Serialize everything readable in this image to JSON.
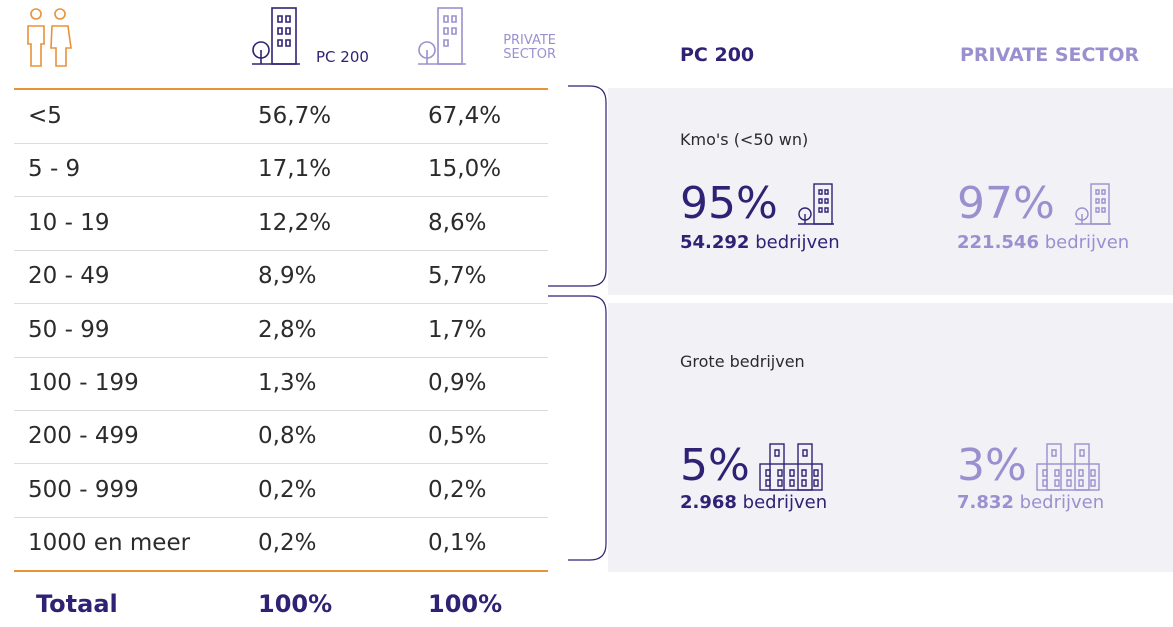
{
  "table": {
    "header": [
      "PC 200",
      "PRIVATE SECTOR"
    ],
    "rows": [
      [
        "<5",
        "56,7%",
        "67,4%"
      ],
      [
        "5 - 9",
        "17,1%",
        "15,0%"
      ],
      [
        "10 - 19",
        "12,2%",
        "8,6%"
      ],
      [
        "20 - 49",
        "8,9%",
        "5,7%"
      ],
      [
        "50 - 99",
        "2,8%",
        "1,7%"
      ],
      [
        "100 - 199",
        "1,3%",
        "0,9%"
      ],
      [
        "200 - 499",
        "0,8%",
        "0,5%"
      ],
      [
        "500 - 999",
        "0,2%",
        "0,2%"
      ],
      [
        "1000 en meer",
        "0,2%",
        "0,1%"
      ]
    ],
    "total": [
      "Totaal",
      "100%",
      "100%"
    ]
  },
  "summary": {
    "header": [
      "PC 200",
      "PRIVATE SECTOR"
    ],
    "groups": [
      {
        "label": "Kmo's (<50 wn)",
        "items": [
          {
            "pct": "95%",
            "count": "54.292",
            "unit": "bedrijven"
          },
          {
            "pct": "97%",
            "count": "221.546",
            "unit": "bedrijven"
          }
        ]
      },
      {
        "label": "Grote bedrijven",
        "items": [
          {
            "pct": "5%",
            "count": "2.968",
            "unit": "bedrijven"
          },
          {
            "pct": "3%",
            "count": "7.832",
            "unit": "bedrijven"
          }
        ]
      }
    ]
  }
}
